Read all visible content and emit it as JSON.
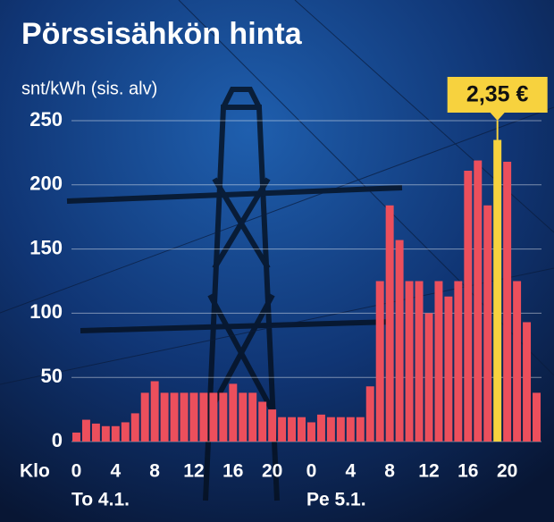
{
  "chart_data": {
    "type": "bar",
    "title": "Pörssisähkön hinta",
    "y_label": "snt/kWh (sis. alv)",
    "x_label": "Klo",
    "categories": [
      "0",
      null,
      null,
      null,
      "4",
      null,
      null,
      null,
      "8",
      null,
      null,
      null,
      "12",
      null,
      null,
      null,
      "16",
      null,
      null,
      null,
      "20",
      null,
      null,
      null,
      "0",
      null,
      null,
      null,
      "4",
      null,
      null,
      null,
      "8",
      null,
      null,
      null,
      "12",
      null,
      null,
      null,
      "16",
      null,
      null,
      null,
      "20",
      null,
      null,
      null
    ],
    "x_groups": [
      "To 4.1.",
      "Pe 5.1."
    ],
    "values": [
      7,
      17,
      14,
      12,
      12,
      15,
      22,
      38,
      47,
      38,
      38,
      38,
      38,
      38,
      38,
      38,
      45,
      38,
      38,
      31,
      25,
      19,
      19,
      19,
      15,
      21,
      19,
      19,
      19,
      19,
      43,
      125,
      184,
      157,
      125,
      125,
      100,
      125,
      113,
      125,
      211,
      219,
      184,
      235,
      218,
      125,
      93,
      38
    ],
    "value_labels": [
      null,
      null,
      null,
      null,
      null,
      null,
      null,
      null,
      null,
      null,
      null,
      null,
      null,
      null,
      null,
      null,
      null,
      null,
      null,
      null,
      null,
      null,
      null,
      null,
      null,
      null,
      null,
      null,
      null,
      null,
      null,
      null,
      null,
      null,
      null,
      null,
      null,
      null,
      null,
      null,
      null,
      null,
      null,
      "2,35 €",
      null,
      null,
      null,
      null
    ],
    "color": "#ec4f5c",
    "highlight_color": "#f7d23e",
    "ylim": [
      0,
      250
    ],
    "yticks": [
      0,
      50,
      100,
      150,
      200,
      250
    ],
    "grid": true
  }
}
